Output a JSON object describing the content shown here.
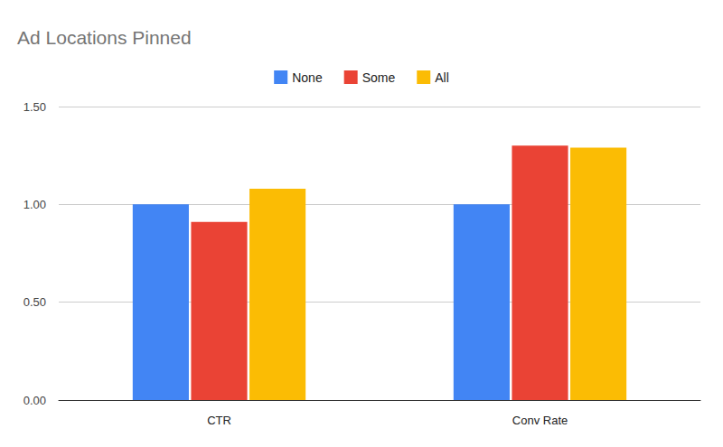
{
  "chart_data": {
    "type": "bar",
    "title": "Ad Locations Pinned",
    "categories": [
      "CTR",
      "Conv Rate"
    ],
    "series": [
      {
        "name": "None",
        "color": "#4285f4",
        "values": [
          1.0,
          1.0
        ]
      },
      {
        "name": "Some",
        "color": "#ea4335",
        "values": [
          0.91,
          1.3
        ]
      },
      {
        "name": "All",
        "color": "#fbbc04",
        "values": [
          1.08,
          1.29
        ]
      }
    ],
    "ylim": [
      0,
      1.5
    ],
    "yticks": [
      {
        "value": 0,
        "label": "0.00"
      },
      {
        "value": 0.5,
        "label": "0.50"
      },
      {
        "value": 1.0,
        "label": "1.00"
      },
      {
        "value": 1.5,
        "label": "1.50"
      }
    ],
    "grid": true,
    "legend": "top"
  }
}
